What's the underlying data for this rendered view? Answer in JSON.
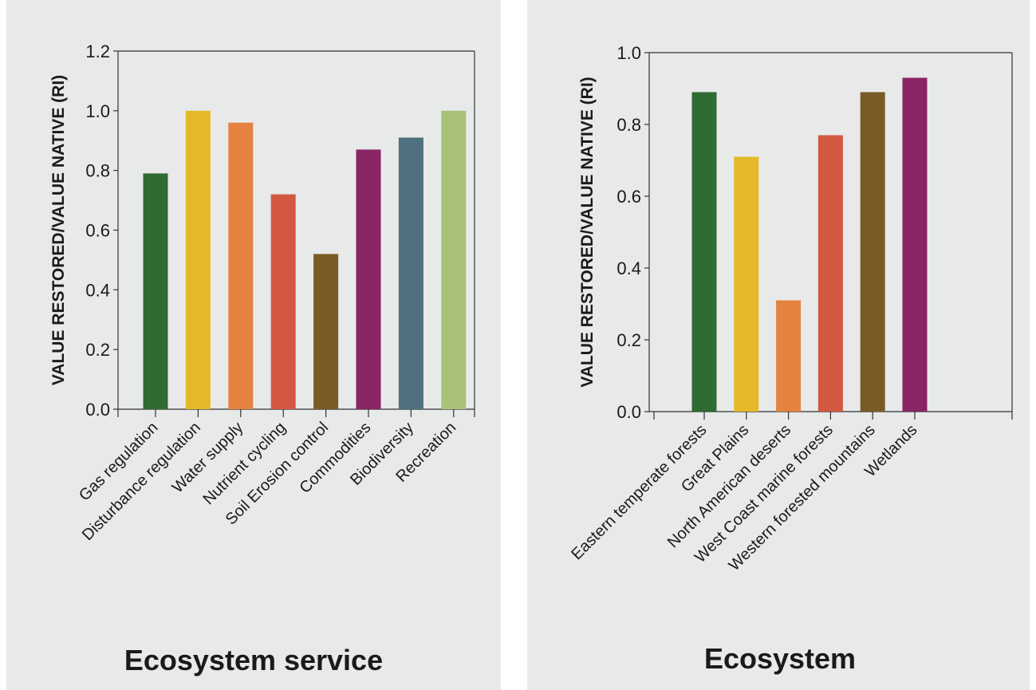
{
  "chart_data": [
    {
      "type": "bar",
      "ylabel": "VALUE RESTORED/VALUE NATIVE (RI)",
      "xlabel": "Ecosystem service",
      "ylim": [
        0,
        1.2
      ],
      "yticks": [
        "0.0",
        "0.2",
        "0.4",
        "0.6",
        "0.8",
        "1.0",
        "1.2"
      ],
      "grid": false,
      "categories": [
        "Gas regulation",
        "Disturbance regulation",
        "Water supply",
        "Nutrient cycling",
        "Soil Erosion control",
        "Commodities",
        "Biodiversity",
        "Recreation"
      ],
      "values": [
        0.79,
        1.0,
        0.96,
        0.72,
        0.52,
        0.87,
        0.91,
        1.0
      ],
      "colors": [
        "#2f6b32",
        "#e3b92b",
        "#e5823f",
        "#d25842",
        "#7a5b26",
        "#8a2465",
        "#4f717f",
        "#a9c27a"
      ]
    },
    {
      "type": "bar",
      "ylabel": "VALUE RESTORED/VALUE NATIVE (RI)",
      "xlabel": "Ecosystem",
      "ylim": [
        0,
        1.0
      ],
      "yticks": [
        "0.0",
        "0.2",
        "0.4",
        "0.6",
        "0.8",
        "1.0"
      ],
      "grid": false,
      "categories": [
        "Eastern temperate forests",
        "Great Plains",
        "North American deserts",
        "West Coast marine forests",
        "Western forested mountains",
        "Wetlands"
      ],
      "values": [
        0.89,
        0.71,
        0.31,
        0.77,
        0.89,
        0.93
      ],
      "colors": [
        "#2f6b32",
        "#e3b92b",
        "#e5823f",
        "#d25842",
        "#7a5b26",
        "#8a2465"
      ]
    }
  ]
}
